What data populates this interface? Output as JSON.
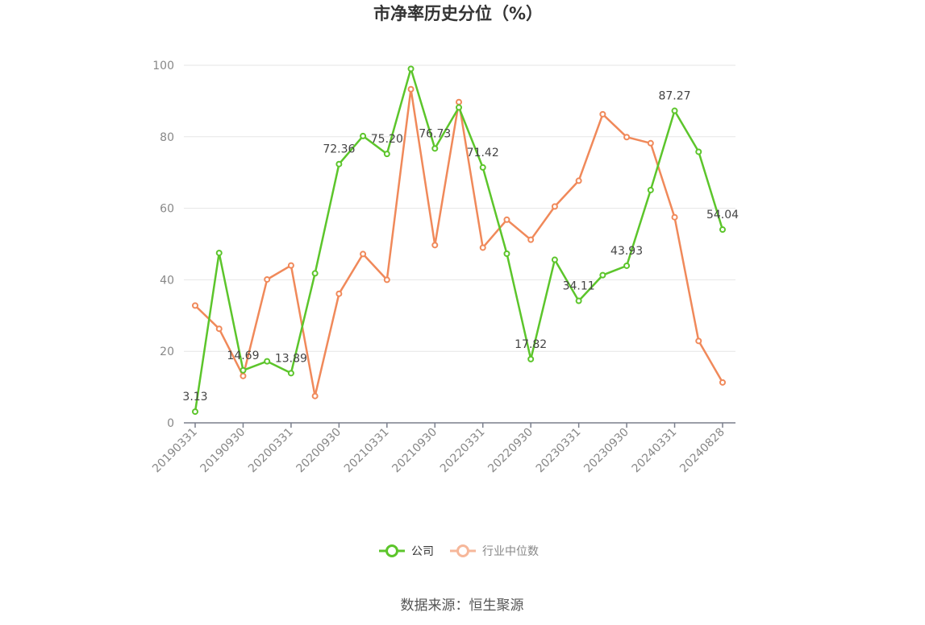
{
  "chart_data": {
    "type": "line",
    "title": "市净率历史分位（%）",
    "source": "数据来源：恒生聚源",
    "ylim": [
      0,
      100
    ],
    "y_ticks": [
      0,
      20,
      40,
      60,
      80,
      100
    ],
    "grid": true,
    "legend_position": "bottom",
    "x_tick_labels": [
      "20190331",
      "20190930",
      "20200331",
      "20200930",
      "20210331",
      "20210930",
      "20220331",
      "20220930",
      "20230331",
      "20230930",
      "20240331",
      "20240828"
    ],
    "series": [
      {
        "name": "公司",
        "color": "#5cc52b",
        "values": [
          3.13,
          47.5,
          14.69,
          17.2,
          13.89,
          41.8,
          72.36,
          80.2,
          75.2,
          99.0,
          76.73,
          88.2,
          71.42,
          47.3,
          17.82,
          45.6,
          34.11,
          41.3,
          43.93,
          65.1,
          87.27,
          75.8,
          54.04
        ]
      },
      {
        "name": "行业中位数",
        "color": "#f0895a",
        "legend_color": "#f6b79a",
        "values": [
          32.8,
          26.3,
          13.1,
          40.1,
          44.0,
          7.5,
          36.1,
          47.2,
          40.0,
          93.3,
          49.7,
          89.7,
          49.0,
          56.8,
          51.2,
          60.5,
          67.7,
          86.3,
          79.9,
          78.2,
          57.5,
          22.9,
          11.3
        ]
      }
    ],
    "data_labels": [
      {
        "index": 0,
        "text": "3.13"
      },
      {
        "index": 2,
        "text": "14.69"
      },
      {
        "index": 4,
        "text": "13.89"
      },
      {
        "index": 6,
        "text": "72.36"
      },
      {
        "index": 8,
        "text": "75.20"
      },
      {
        "index": 10,
        "text": "76.73"
      },
      {
        "index": 12,
        "text": "71.42"
      },
      {
        "index": 14,
        "text": "17.82"
      },
      {
        "index": 16,
        "text": "34.11"
      },
      {
        "index": 18,
        "text": "43.93"
      },
      {
        "index": 20,
        "text": "87.27"
      },
      {
        "index": 22,
        "text": "54.04"
      }
    ]
  }
}
